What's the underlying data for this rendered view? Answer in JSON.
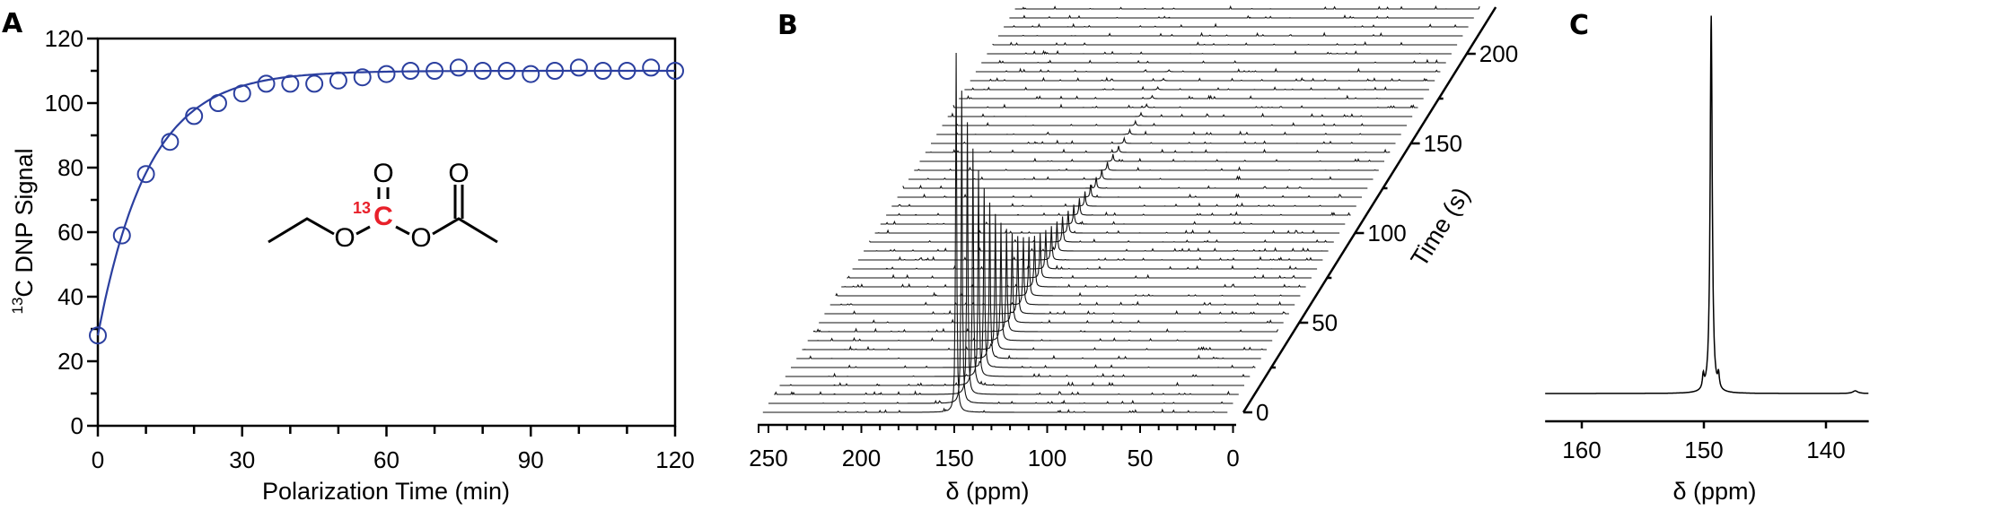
{
  "colors": {
    "series": "#2B3F9F",
    "label13c": "#E8202A",
    "ink": "#000000"
  },
  "chart_data": [
    {
      "panel": "A",
      "type": "scatter",
      "title": "",
      "xlabel": "Polarization Time (min)",
      "ylabel_sup": "13",
      "ylabel": "C DNP Signal",
      "xlim": [
        0,
        120
      ],
      "ylim": [
        0,
        120
      ],
      "xticks": [
        "0",
        "30",
        "60",
        "90",
        "120"
      ],
      "yticks": [
        "0",
        "20",
        "40",
        "60",
        "80",
        "100",
        "120"
      ],
      "x": [
        0,
        5,
        10,
        15,
        20,
        25,
        30,
        35,
        40,
        45,
        50,
        55,
        60,
        65,
        70,
        75,
        80,
        85,
        90,
        95,
        100,
        105,
        110,
        115,
        120
      ],
      "y": [
        28,
        59,
        78,
        88,
        96,
        100,
        103,
        106,
        106,
        106,
        107,
        108,
        109,
        110,
        110,
        111,
        110,
        110,
        109,
        110,
        111,
        110,
        110,
        111,
        110
      ],
      "fit": {
        "type": "exponential",
        "plateau": 110,
        "amplitude": 82,
        "tau_min": 10.5
      },
      "molecule": {
        "o1": "O",
        "o2": "O",
        "o3": "O",
        "o4": "O",
        "label_sup": "13",
        "label_atom": "C"
      }
    },
    {
      "panel": "B",
      "type": "line",
      "xlabel": "δ (ppm)",
      "xlim": [
        253,
        0
      ],
      "xticks": [
        "250",
        "200",
        "150",
        "100",
        "50",
        "0"
      ],
      "zlabel": "Time (s)",
      "zticks": [
        "0",
        "50",
        "100",
        "150",
        "200"
      ],
      "peak_ppm": 149,
      "time_step_s": 5,
      "relative_intensities": [
        1.0,
        0.87,
        0.757,
        0.659,
        0.573,
        0.498,
        0.434,
        0.377,
        0.328,
        0.286,
        0.248,
        0.216,
        0.188,
        0.164,
        0.142,
        0.124,
        0.108,
        0.094,
        0.082,
        0.071,
        0.062,
        0.054,
        0.047,
        0.041,
        0.035,
        0.031,
        0.027,
        0.023,
        0.02,
        0.018,
        0.015,
        0.013,
        0.012,
        0.01,
        0.009,
        0.008,
        0.007,
        0.006,
        0.005,
        0,
        0,
        0,
        0,
        0,
        0,
        0
      ]
    },
    {
      "panel": "C",
      "type": "line",
      "xlabel": "δ (ppm)",
      "xlim": [
        163,
        136.5
      ],
      "xticks": [
        "160",
        "150",
        "140"
      ],
      "peaks": [
        {
          "ppm": 149.4,
          "rel": 1.0
        },
        {
          "ppm": 150.05,
          "rel": 0.036
        },
        {
          "ppm": 148.8,
          "rel": 0.036
        },
        {
          "ppm": 137.6,
          "rel": 0.007
        }
      ]
    }
  ],
  "panels": {
    "a": "A",
    "b": "B",
    "c": "C"
  }
}
